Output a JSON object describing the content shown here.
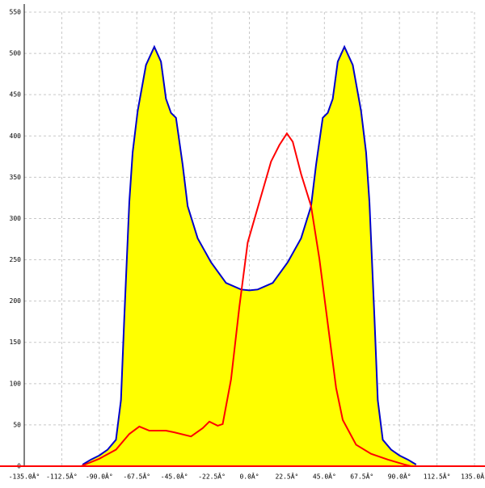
{
  "chart_data": {
    "type": "area",
    "xlim": [
      -135,
      135
    ],
    "ylim": [
      0,
      550
    ],
    "xticks": [
      {
        "value": -135,
        "label": "-135.0Â°"
      },
      {
        "value": -112.5,
        "label": "-112.5Â°"
      },
      {
        "value": -90,
        "label": "-90.0Â°"
      },
      {
        "value": -67.5,
        "label": "-67.5Â°"
      },
      {
        "value": -45,
        "label": "-45.0Â°"
      },
      {
        "value": -22.5,
        "label": "-22.5Â°"
      },
      {
        "value": 0,
        "label": "0.0Â°"
      },
      {
        "value": 22.5,
        "label": "22.5Â°"
      },
      {
        "value": 45,
        "label": "45.0Â°"
      },
      {
        "value": 67.5,
        "label": "67.5Â°"
      },
      {
        "value": 90,
        "label": "90.0Â°"
      },
      {
        "value": 112.5,
        "label": "112.5Â°"
      },
      {
        "value": 135,
        "label": "135.0Â°"
      }
    ],
    "yticks": [
      0,
      50,
      100,
      150,
      200,
      250,
      300,
      350,
      400,
      450,
      500,
      550
    ],
    "grid": true,
    "series": [
      {
        "color": "#0000cc",
        "fill": "#ffff00",
        "x": [
          -100,
          -95,
          -90,
          -85,
          -80,
          -77,
          -75,
          -72,
          -70,
          -67,
          -62,
          -57,
          -53,
          -50,
          -47,
          -44,
          -40,
          -37,
          -31,
          -23,
          -14,
          -5,
          0,
          5,
          14,
          23,
          31,
          37,
          40,
          44,
          47,
          50,
          53,
          57,
          62,
          67,
          70,
          72,
          75,
          77,
          80,
          85,
          90,
          95,
          100
        ],
        "values": [
          2,
          8,
          13,
          20,
          32,
          80,
          180,
          320,
          380,
          430,
          486,
          508,
          490,
          445,
          428,
          422,
          365,
          315,
          276,
          247,
          222,
          214,
          213,
          214,
          222,
          247,
          276,
          315,
          365,
          422,
          428,
          445,
          490,
          508,
          486,
          430,
          380,
          320,
          180,
          80,
          32,
          20,
          13,
          8,
          2
        ]
      },
      {
        "color": "#ff0000",
        "x": [
          -101,
          -90,
          -80,
          -72,
          -66,
          -60,
          -50,
          -45,
          -35,
          -28,
          -24,
          -19,
          -16,
          -11,
          -6,
          -1,
          6,
          13,
          18,
          22.5,
          26,
          31,
          37,
          42,
          47,
          52,
          56,
          64,
          73,
          83,
          93,
          97
        ],
        "values": [
          0,
          9,
          20,
          39,
          48,
          43,
          43,
          41,
          36,
          46,
          54,
          49,
          51,
          105,
          193,
          271,
          320,
          369,
          389,
          403,
          393,
          354,
          315,
          251,
          173,
          95,
          56,
          26,
          15,
          8,
          2,
          0
        ]
      }
    ]
  }
}
